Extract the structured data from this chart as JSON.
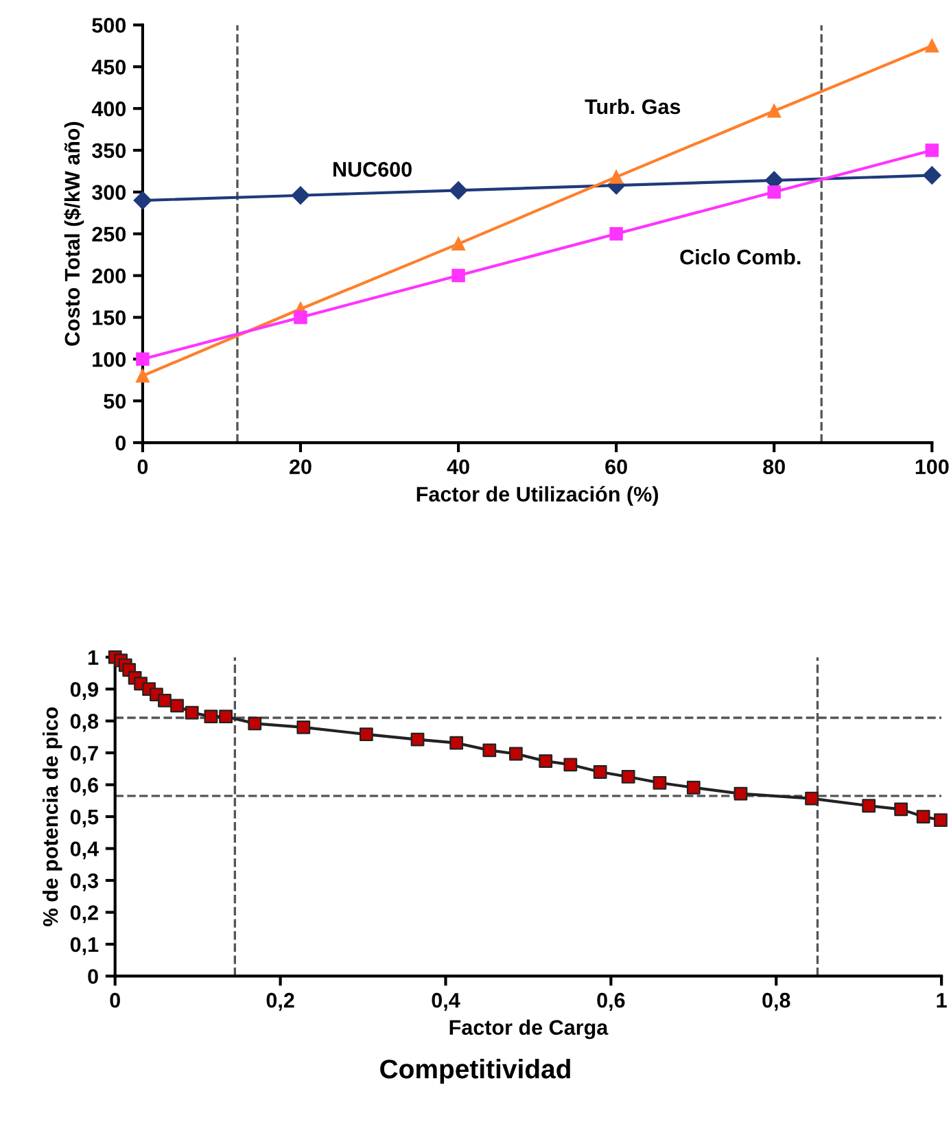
{
  "chart_data": [
    {
      "type": "line",
      "xlabel": "Factor de Utilización (%)",
      "ylabel": "Costo Total ($/kW año)",
      "x": [
        0,
        20,
        40,
        60,
        80,
        100
      ],
      "xlim": [
        0,
        100
      ],
      "xticks": [
        0,
        20,
        40,
        60,
        80,
        100
      ],
      "ylim": [
        0,
        500
      ],
      "yticks": [
        0,
        50,
        100,
        150,
        200,
        250,
        300,
        350,
        400,
        450,
        500
      ],
      "grid": false,
      "legend": false,
      "series": [
        {
          "name": "NUC600",
          "color": "#1f3a7a",
          "marker": "diamond",
          "values": [
            290,
            296,
            302,
            308,
            314,
            320
          ]
        },
        {
          "name": "Turb. Gas",
          "color": "#ff7f2a",
          "marker": "triangle",
          "values": [
            80,
            160,
            238,
            318,
            397,
            475
          ]
        },
        {
          "name": "Ciclo Comb.",
          "color": "#ff33ff",
          "marker": "square",
          "values": [
            100,
            150,
            200,
            250,
            300,
            350
          ]
        }
      ],
      "ref_lines": [
        {
          "axis": "x",
          "value": 12,
          "color": "#555555",
          "line_style": "dashed"
        },
        {
          "axis": "x",
          "value": 86,
          "color": "#555555",
          "line_style": "dashed"
        }
      ]
    },
    {
      "type": "line",
      "xlabel": "Factor de Carga",
      "ylabel": "% de potencia de pico",
      "xlim": [
        0,
        1
      ],
      "xticks": [
        0,
        {
          "value": 0.2,
          "label": "0,2"
        },
        {
          "value": 0.4,
          "label": "0,4"
        },
        {
          "value": 0.6,
          "label": "0,6"
        },
        {
          "value": 0.8,
          "label": "0,8"
        },
        1
      ],
      "ylim": [
        0,
        1
      ],
      "yticks": [
        0,
        {
          "value": 0.1,
          "label": "0,1"
        },
        {
          "value": 0.2,
          "label": "0,2"
        },
        {
          "value": 0.3,
          "label": "0,3"
        },
        {
          "value": 0.4,
          "label": "0,4"
        },
        {
          "value": 0.5,
          "label": "0,5"
        },
        {
          "value": 0.6,
          "label": "0,6"
        },
        {
          "value": 0.7,
          "label": "0,7"
        },
        {
          "value": 0.8,
          "label": "0,8"
        },
        {
          "value": 0.9,
          "label": "0,9"
        },
        1
      ],
      "grid": false,
      "legend": false,
      "marker": "square",
      "series": [
        {
          "color": "#222222",
          "colors": [
            "#c00000",
            "#c00000",
            "#c00000",
            "#c00000",
            "#c00000",
            "#c00000",
            "#c00000",
            "#c00000",
            "#c00000",
            "#c00000",
            "#c00000",
            "#c00000",
            "#c00000",
            "#c00000",
            "#c00000",
            "#c00000",
            "#c00000",
            "#c00000",
            "#c00000",
            "#c00000",
            "#c00000",
            "#c00000",
            "#c00000",
            "#c00000",
            "#c00000",
            "#c00000",
            "#c00000",
            "#c00000",
            "#c00000",
            "#c00000",
            "#c00000",
            "#c00000"
          ],
          "x": [
            0,
            0.007,
            0.0125,
            0.017,
            0.024,
            0.031,
            0.041,
            0.05,
            0.06,
            0.075,
            0.093,
            0.116,
            0.134,
            0.169,
            0.228,
            0.304,
            0.366,
            0.413,
            0.453,
            0.485,
            0.521,
            0.551,
            0.587,
            0.621,
            0.659,
            0.7,
            0.757,
            0.843,
            0.912,
            0.951,
            0.978,
            0.999
          ],
          "values": [
            1.0,
            0.99,
            0.975,
            0.96,
            0.935,
            0.917,
            0.9,
            0.883,
            0.864,
            0.848,
            0.826,
            0.814,
            0.814,
            0.792,
            0.78,
            0.758,
            0.742,
            0.731,
            0.708,
            0.697,
            0.674,
            0.663,
            0.64,
            0.625,
            0.606,
            0.591,
            0.572,
            0.557,
            0.534,
            0.523,
            0.5,
            0.489
          ]
        }
      ],
      "ref_lines": [
        {
          "axis": "x",
          "value": 0.145,
          "color": "#555555",
          "line_style": "dashed"
        },
        {
          "axis": "x",
          "value": 0.85,
          "color": "#555555",
          "line_style": "dashed"
        },
        {
          "axis": "y",
          "value": 0.81,
          "color": "#555555",
          "line_style": "dashed"
        },
        {
          "axis": "y",
          "value": 0.565,
          "color": "#555555",
          "line_style": "dashed"
        }
      ],
      "annotations": [
        "Competitividad"
      ]
    }
  ]
}
